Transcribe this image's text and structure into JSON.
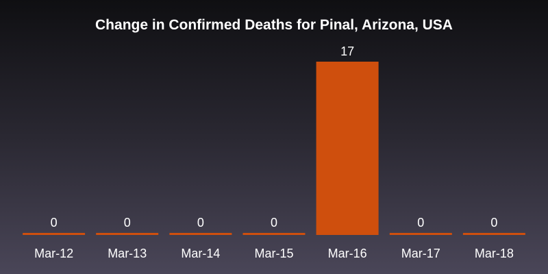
{
  "chart_data": {
    "type": "bar",
    "title": "Change in Confirmed Deaths for Pinal, Arizona, USA",
    "categories": [
      "Mar-12",
      "Mar-13",
      "Mar-14",
      "Mar-15",
      "Mar-16",
      "Mar-17",
      "Mar-18"
    ],
    "values": [
      0,
      0,
      0,
      0,
      17,
      0,
      0
    ],
    "data_labels": [
      "0",
      "0",
      "0",
      "0",
      "17",
      "0",
      "0"
    ],
    "xlabel": "",
    "ylabel": "",
    "ylim": [
      0,
      17
    ],
    "grid": false,
    "legend": "none",
    "bar_color": "#cf4f0d",
    "text_color": "#ffffff"
  }
}
